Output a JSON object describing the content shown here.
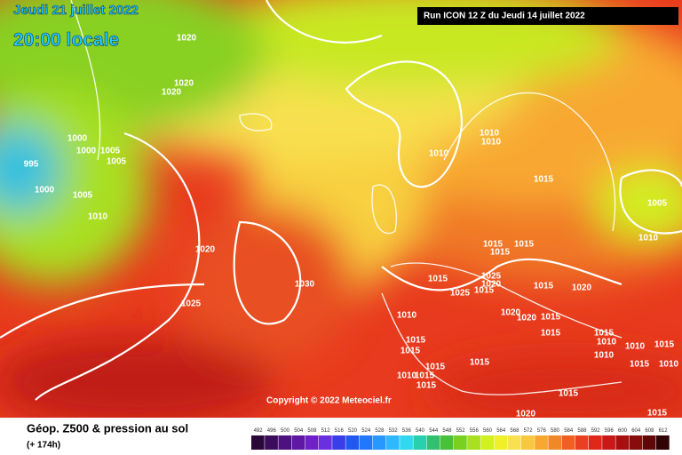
{
  "header": {
    "date": "Jeudi 21 juillet 2022",
    "time": "20:00 locale",
    "run": "Run ICON 12 Z du Jeudi 14 juillet 2022"
  },
  "copyright": "Copyright © 2022 Meteociel.fr",
  "legend": {
    "title": "Géop. Z500 & pression au sol",
    "subtitle": "(+ 174h)",
    "scale": [
      492,
      496,
      500,
      504,
      508,
      512,
      516,
      520,
      524,
      528,
      532,
      536,
      540,
      544,
      548,
      552,
      556,
      560,
      564,
      568,
      572,
      576,
      580,
      584,
      588,
      592,
      596,
      600,
      604,
      608,
      612
    ],
    "colors": [
      "#2a0838",
      "#3c0c5c",
      "#4e1280",
      "#5e18a4",
      "#7020c8",
      "#6a30e0",
      "#3a3ee8",
      "#2058f0",
      "#2078ff",
      "#2898ff",
      "#30b8ff",
      "#30d8f0",
      "#28d0b0",
      "#30c070",
      "#48c038",
      "#78d020",
      "#a8e020",
      "#d0f020",
      "#f0f028",
      "#f8e050",
      "#f8c840",
      "#f8a830",
      "#f08828",
      "#f06020",
      "#e84020",
      "#e02818",
      "#c81818",
      "#a81010",
      "#880c0c",
      "#600808",
      "#300404"
    ]
  },
  "isobar_labels": [
    1020,
    1020,
    1020,
    1000,
    1000,
    1005,
    1005,
    995,
    1000,
    1005,
    1010,
    1020,
    1030,
    1025,
    1010,
    1010,
    1010,
    1015,
    1005,
    1010,
    1015,
    1015,
    1015,
    1015,
    1025,
    1015,
    1020,
    1025,
    1020,
    1015,
    1020,
    1020,
    1010,
    1015,
    1015,
    1015,
    1015,
    1015,
    1015,
    1015,
    1010,
    1015,
    1015,
    1015,
    1010,
    1010,
    1010,
    1015,
    1010,
    1015,
    1015,
    1020
  ]
}
